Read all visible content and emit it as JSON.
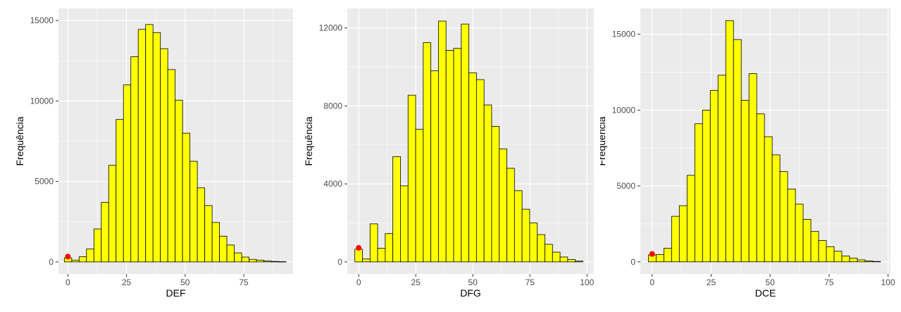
{
  "colors": {
    "panel_background": "#ebebeb",
    "gridline": "#ffffff",
    "bar_fill": "#ffff00",
    "bar_stroke": "#000000",
    "marker": "#ff0000"
  },
  "chart_data": [
    {
      "type": "bar",
      "subtype": "histogram",
      "xlabel": "DEF",
      "ylabel": "Frequência",
      "xlim": [
        -4,
        96
      ],
      "ylim": [
        -750,
        15750
      ],
      "xticks": [
        0,
        25,
        50,
        75
      ],
      "xtick_labels": [
        "0",
        "25",
        "50",
        "75"
      ],
      "yticks": [
        0,
        5000,
        10000,
        15000
      ],
      "ytick_labels": [
        "0",
        "5000",
        "10000",
        "15000"
      ],
      "bin_width": 3.15,
      "bin_start": -1.5,
      "values": [
        250,
        110,
        320,
        800,
        2050,
        3700,
        6000,
        8850,
        11000,
        12750,
        14450,
        14750,
        14250,
        13250,
        11950,
        10050,
        8000,
        6250,
        4600,
        3500,
        2450,
        1600,
        1050,
        560,
        300,
        160,
        110,
        55,
        30,
        15
      ],
      "marker": {
        "x": 0,
        "y": 330
      },
      "grid": true,
      "legend": "none"
    },
    {
      "type": "bar",
      "subtype": "histogram",
      "xlabel": "DFG",
      "ylabel": "Frequência",
      "xlim": [
        -5,
        103
      ],
      "ylim": [
        -620,
        13000
      ],
      "xticks": [
        0,
        25,
        50,
        75,
        100
      ],
      "xtick_labels": [
        "0",
        "25",
        "50",
        "75",
        "100"
      ],
      "yticks": [
        0,
        4000,
        8000,
        12000
      ],
      "yticks_labels_note": "",
      "ytick_labels": [
        "0",
        "4000",
        "8000",
        "12000"
      ],
      "bin_width": 3.33,
      "bin_start": -1.7,
      "values": [
        650,
        150,
        1950,
        700,
        1450,
        5400,
        3900,
        8550,
        6800,
        11250,
        9800,
        12350,
        10850,
        10950,
        12200,
        9700,
        9350,
        8050,
        6950,
        5800,
        4800,
        3650,
        2700,
        2000,
        1400,
        900,
        500,
        250,
        120,
        40
      ],
      "marker": {
        "x": 0,
        "y": 720
      },
      "grid": true,
      "legend": "none"
    },
    {
      "type": "bar",
      "subtype": "histogram",
      "xlabel": "DCE",
      "ylabel": "Frequência",
      "xlim": [
        -5,
        101
      ],
      "ylim": [
        -800,
        16700
      ],
      "xticks": [
        0,
        25,
        50,
        75,
        100
      ],
      "xtick_labels": [
        "0",
        "25",
        "50",
        "75",
        "100"
      ],
      "yticks": [
        0,
        5000,
        10000,
        15000
      ],
      "ytick_labels": [
        "0",
        "5000",
        "10000",
        "15000"
      ],
      "bin_width": 3.28,
      "bin_start": -1.6,
      "values": [
        450,
        480,
        900,
        3000,
        3700,
        5700,
        9100,
        10000,
        11300,
        12300,
        15900,
        14650,
        10650,
        12400,
        9750,
        8250,
        7050,
        5950,
        4800,
        3800,
        2800,
        2000,
        1400,
        1000,
        700,
        380,
        240,
        130,
        60,
        25
      ],
      "marker": {
        "x": 0,
        "y": 520
      },
      "grid": true,
      "legend": "none"
    }
  ]
}
